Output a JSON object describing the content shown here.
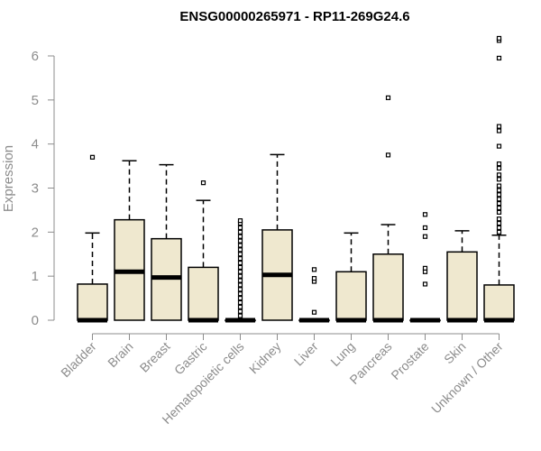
{
  "chart_data": {
    "type": "boxplot",
    "title": "ENSG00000265971 - RP11-269G24.6",
    "xlabel": "",
    "ylabel": "Expression",
    "ylim": [
      0,
      6.5
    ],
    "yticks": [
      0,
      1,
      2,
      3,
      4,
      5,
      6
    ],
    "box_color": "#efe8cf",
    "categories": [
      "Bladder",
      "Brain",
      "Breast",
      "Gastric",
      "Hematopoietic cells",
      "Kidney",
      "Liver",
      "Lung",
      "Pancreas",
      "Prostate",
      "Skin",
      "Unknown / Other"
    ],
    "boxes": [
      {
        "name": "Bladder",
        "min": 0,
        "q1": 0,
        "median": 0,
        "q3": 0.82,
        "max": 1.98,
        "outliers": [
          3.7
        ]
      },
      {
        "name": "Brain",
        "min": 0,
        "q1": 0,
        "median": 1.1,
        "q3": 2.28,
        "max": 3.62,
        "outliers": []
      },
      {
        "name": "Breast",
        "min": 0,
        "q1": 0,
        "median": 0.97,
        "q3": 1.85,
        "max": 3.53,
        "outliers": []
      },
      {
        "name": "Gastric",
        "min": 0,
        "q1": 0,
        "median": 0,
        "q3": 1.2,
        "max": 2.72,
        "outliers": [
          3.12
        ]
      },
      {
        "name": "Hematopoietic cells",
        "min": 0,
        "q1": 0,
        "median": 0,
        "q3": 0,
        "max": 0,
        "outliers": [
          0.1,
          0.2,
          0.3,
          0.4,
          0.5,
          0.6,
          0.7,
          0.8,
          0.9,
          1.0,
          1.1,
          1.2,
          1.3,
          1.4,
          1.5,
          1.6,
          1.7,
          1.8,
          1.9,
          2.0,
          2.1,
          2.2,
          2.26
        ]
      },
      {
        "name": "Kidney",
        "min": 0,
        "q1": 0,
        "median": 1.03,
        "q3": 2.05,
        "max": 3.76,
        "outliers": []
      },
      {
        "name": "Liver",
        "min": 0,
        "q1": 0,
        "median": 0,
        "q3": 0,
        "max": 0,
        "outliers": [
          0.18,
          0.88,
          0.95,
          1.15
        ]
      },
      {
        "name": "Lung",
        "min": 0,
        "q1": 0,
        "median": 0,
        "q3": 1.1,
        "max": 1.98,
        "outliers": []
      },
      {
        "name": "Pancreas",
        "min": 0,
        "q1": 0,
        "median": 0,
        "q3": 1.5,
        "max": 2.17,
        "outliers": [
          3.75,
          5.05
        ]
      },
      {
        "name": "Prostate",
        "min": 0,
        "q1": 0,
        "median": 0,
        "q3": 0,
        "max": 0,
        "outliers": [
          0.82,
          1.1,
          1.18,
          1.9,
          2.1,
          2.4
        ]
      },
      {
        "name": "Skin",
        "min": 0,
        "q1": 0,
        "median": 0,
        "q3": 1.55,
        "max": 2.03,
        "outliers": []
      },
      {
        "name": "Unknown / Other",
        "min": 0,
        "q1": 0,
        "median": 0,
        "q3": 0.8,
        "max": 1.93,
        "outliers": [
          2.0,
          2.1,
          2.2,
          2.3,
          2.45,
          2.55,
          2.65,
          2.75,
          2.85,
          2.95,
          3.05,
          3.2,
          3.3,
          3.45,
          3.55,
          3.95,
          4.3,
          4.4,
          5.95,
          6.35,
          6.4
        ]
      }
    ]
  }
}
